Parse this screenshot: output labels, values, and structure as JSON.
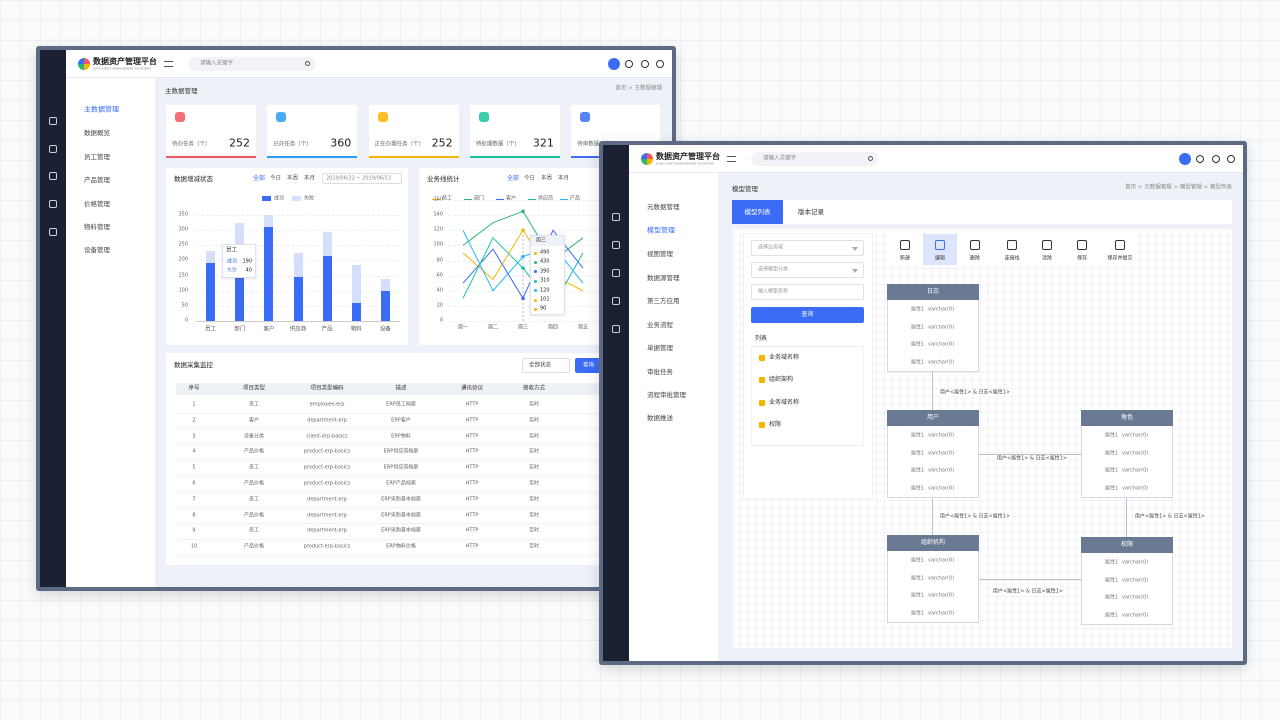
{
  "window1": {
    "logo": {
      "title": "数据资产管理平台",
      "subtitle": "DATA ASSET MANAGEMENT PLATFORM"
    },
    "search_placeholder": "请输入关键字",
    "menu": [
      "主数据管理",
      "数据概览",
      "员工管理",
      "产品管理",
      "价格管理",
      "物料管理",
      "设备管理"
    ],
    "page_title": "主数据管理",
    "breadcrumb": "首页 > 主数据管理",
    "stats": [
      {
        "label": "待办任务（个）",
        "value": 252,
        "color": "#f0565e"
      },
      {
        "label": "已办任务（个）",
        "value": 360,
        "color": "#2d9cf0"
      },
      {
        "label": "正在办理任务（个）",
        "value": 252,
        "color": "#f7b500"
      },
      {
        "label": "待处理数据（个）",
        "value": 321,
        "color": "#19c3a0"
      },
      {
        "label": "待审数据（个）",
        "color": "#3b6cf6"
      }
    ],
    "table": {
      "title": "数据采集监控",
      "filter": "全部状态",
      "button": "查询",
      "columns": [
        "序号",
        "项目类型",
        "项目类型编码",
        "描述",
        "通讯协议",
        "接收方式"
      ],
      "rows": [
        [
          1,
          "员工",
          "employee-erp",
          "ERP员工档案",
          "HTTP",
          "实时"
        ],
        [
          2,
          "客户",
          "department-erp",
          "ERP客户",
          "HTTP",
          "实时"
        ],
        [
          3,
          "设备分类",
          "client-erp-basics",
          "ERP物料",
          "HTTP",
          "实时"
        ],
        [
          4,
          "产品价格",
          "product-erp-basics",
          "ERP供应商档案",
          "HTTP",
          "实时"
        ],
        [
          5,
          "员工",
          "product-erp-basics",
          "ERP供应商档案",
          "HTTP",
          "实时"
        ],
        [
          6,
          "产品价格",
          "product-erp-basics",
          "ERP产品档案",
          "HTTP",
          "定时"
        ],
        [
          7,
          "员工",
          "department-erp",
          "ERP采购基本档案",
          "HTTP",
          "定时"
        ],
        [
          8,
          "产品价格",
          "department-erp",
          "ERP采购基本档案",
          "HTTP",
          "定时"
        ],
        [
          9,
          "员工",
          "department-erp",
          "ERP采购基本档案",
          "HTTP",
          "定时"
        ],
        [
          10,
          "产品价格",
          "product-erp-basics",
          "ERP物料价格",
          "HTTP",
          "定时"
        ]
      ]
    }
  },
  "chart_data": [
    {
      "type": "bar",
      "stacked": true,
      "title": "数据增减状态",
      "tabs": [
        "全部",
        "今日",
        "本周",
        "本月"
      ],
      "date_range": "2019/06/22 ~ 2019/06/23",
      "categories": [
        "员工",
        "部门",
        "客户",
        "供应商",
        "产品",
        "物料",
        "设备"
      ],
      "series": [
        {
          "name": "成功",
          "color": "#3b6cf6",
          "values": [
            190,
            190,
            310,
            145,
            215,
            60,
            100
          ]
        },
        {
          "name": "失败",
          "color": "#d5defa",
          "values": [
            40,
            135,
            40,
            80,
            80,
            125,
            40
          ]
        }
      ],
      "ylim": [
        0,
        350
      ],
      "yticks": [
        0,
        50,
        100,
        150,
        200,
        250,
        300,
        350
      ],
      "grid": true
    },
    {
      "type": "line",
      "title": "业务线统计",
      "tabs": [
        "全部",
        "今日",
        "本周",
        "本月"
      ],
      "categories": [
        "周一",
        "周二",
        "周三",
        "周四",
        "周五"
      ],
      "series": [
        {
          "name": "员工",
          "color": "#f7b500",
          "values": [
            90,
            55,
            120,
            60,
            40
          ]
        },
        {
          "name": "部门",
          "color": "#2bb673",
          "values": [
            100,
            130,
            145,
            80,
            110
          ]
        },
        {
          "name": "客户",
          "color": "#3b6cf6",
          "values": [
            50,
            95,
            30,
            120,
            70
          ]
        },
        {
          "name": "供应商",
          "color": "#19c3a0",
          "values": [
            30,
            110,
            70,
            20,
            90
          ]
        },
        {
          "name": "产品",
          "color": "#29b6f6",
          "values": [
            120,
            40,
            85,
            100,
            50
          ]
        }
      ],
      "ylim": [
        0,
        160
      ],
      "yticks": [
        0,
        20,
        40,
        60,
        80,
        100,
        120,
        140,
        160
      ],
      "grid": true,
      "tooltip": {
        "title": "周三",
        "items": [
          "490",
          "430",
          "390",
          "310",
          "120",
          "101",
          "90"
        ]
      }
    }
  ],
  "window2": {
    "logo": {
      "title": "数据资产管理平台",
      "subtitle": "DATA ASSET MANAGEMENT PLATFORM"
    },
    "search_placeholder": "请输入关键字",
    "menu": [
      "元数据管理",
      "模型管理",
      "视图管理",
      "数据源管理",
      "第三方应用",
      "业务流程",
      "单据管理",
      "审批任务",
      "流程审批管理",
      "数据推送"
    ],
    "page_title": "模型管理",
    "breadcrumb": "首页 > 元数据管理 > 模型管理 > 模型列表",
    "tabs": [
      "模型列表",
      "版本记录"
    ],
    "filters": {
      "domain": "选择业务域",
      "category": "选择模型分类",
      "name": "输入模型名称",
      "button": "查询",
      "list_title": "列表",
      "list": [
        "业务域名称",
        "组织架构",
        "业务域名称",
        "权限"
      ]
    },
    "toolbar": [
      "新建",
      "编辑",
      "删除",
      "连接线",
      "清除",
      "保存",
      "保存并提交"
    ],
    "entities": [
      {
        "name": "日志",
        "fields": [
          {
            "name": "属性1",
            "type": "varchar(0)"
          },
          {
            "name": "属性1",
            "type": "varchar(0)"
          },
          {
            "name": "属性1",
            "type": "varchar(0)"
          },
          {
            "name": "属性1",
            "type": "varchar(0)"
          }
        ]
      },
      {
        "name": "用户",
        "fields": [
          {
            "name": "属性1",
            "type": "varchar(0)"
          },
          {
            "name": "属性1",
            "type": "varchar(0)"
          },
          {
            "name": "属性1",
            "type": "varchar(0)"
          },
          {
            "name": "属性1",
            "type": "varchar(0)"
          }
        ]
      },
      {
        "name": "角色",
        "fields": [
          {
            "name": "属性1",
            "type": "varchar(0)"
          },
          {
            "name": "属性1",
            "type": "varchar(0)"
          },
          {
            "name": "属性1",
            "type": "varchar(0)"
          },
          {
            "name": "属性1",
            "type": "varchar(0)"
          }
        ]
      },
      {
        "name": "组织机构",
        "fields": [
          {
            "name": "属性1",
            "type": "varchar(0)"
          },
          {
            "name": "属性1",
            "type": "varchar(0)"
          },
          {
            "name": "属性1",
            "type": "varchar(0)"
          },
          {
            "name": "属性1",
            "type": "varchar(0)"
          }
        ]
      },
      {
        "name": "权限",
        "fields": [
          {
            "name": "属性1",
            "type": "varchar(0)"
          },
          {
            "name": "属性1",
            "type": "varchar(0)"
          },
          {
            "name": "属性1",
            "type": "varchar(0)"
          },
          {
            "name": "属性1",
            "type": "varchar(0)"
          }
        ]
      }
    ],
    "relations": [
      "用户<属性1> & 日志<属性1>",
      "用户<属性1> & 日志<属性1>",
      "用户<属性1> & 日志<属性1>",
      "用户<属性1> & 日志<属性1>",
      "用户<属性1> & 日志<属性1>"
    ]
  }
}
